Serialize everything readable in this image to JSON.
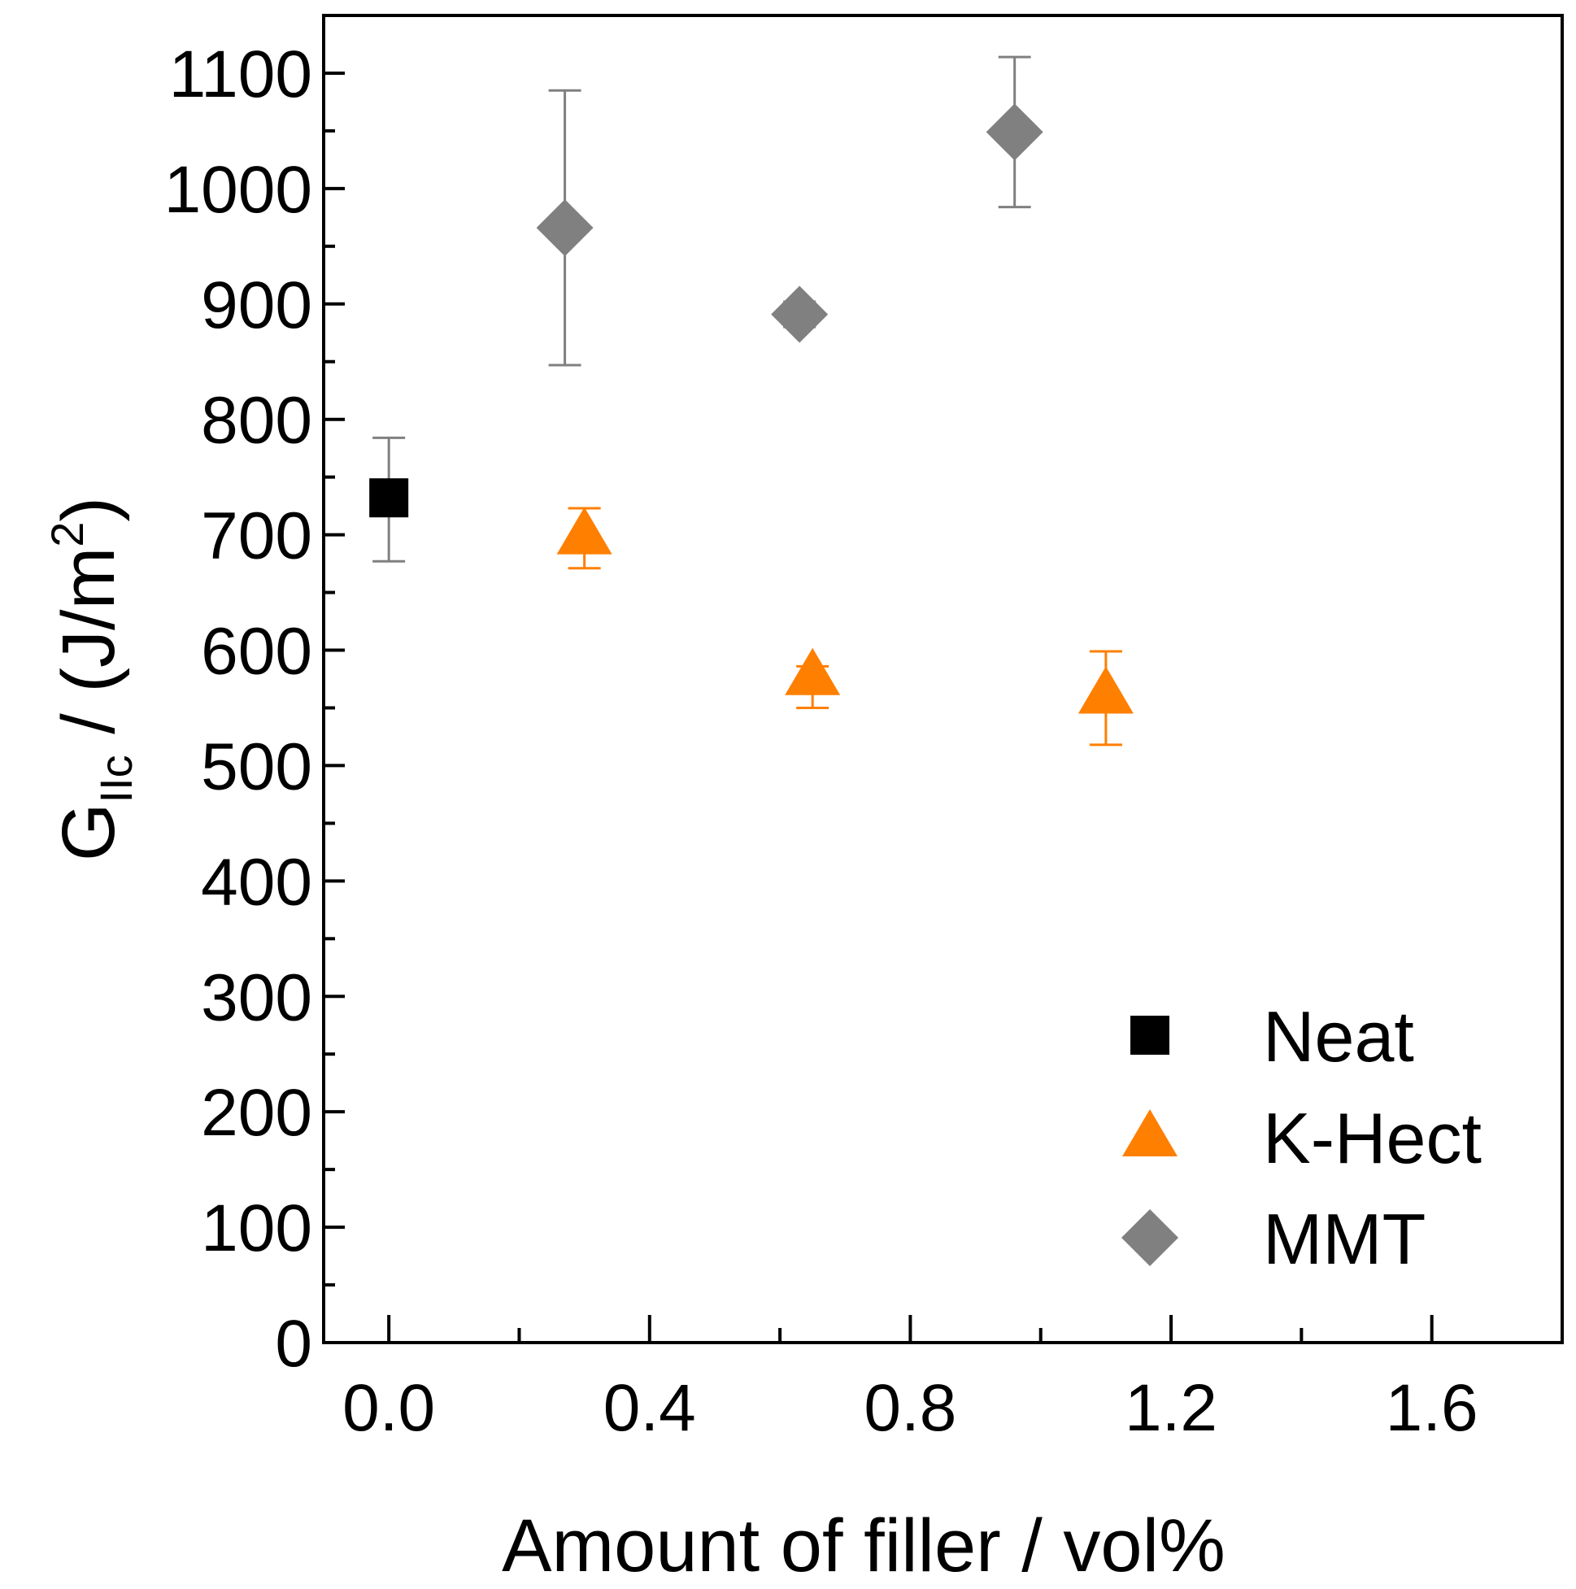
{
  "chart_data": {
    "type": "scatter",
    "xlabel": "Amount of filler / vol%",
    "ylabel": {
      "main": "G",
      "subscript": "IIc",
      "units": " / (J/m",
      "superscript": "2",
      "close": ")"
    },
    "xlim": [
      -0.1,
      1.8
    ],
    "ylim": [
      0,
      1150
    ],
    "x_ticks": [
      0.0,
      0.4,
      0.8,
      1.2,
      1.6
    ],
    "x_tick_labels": [
      "0.0",
      "0.4",
      "0.8",
      "1.2",
      "1.6"
    ],
    "y_ticks": [
      0,
      100,
      200,
      300,
      400,
      500,
      600,
      700,
      800,
      900,
      1000,
      1100
    ],
    "y_tick_labels": [
      "0",
      "100",
      "200",
      "300",
      "400",
      "500",
      "600",
      "700",
      "800",
      "900",
      "1000",
      "1100"
    ],
    "grid": false,
    "legend_position": "bottom-right",
    "series": [
      {
        "name": "Neat",
        "marker": "square",
        "color": "#000000",
        "error_color": "#808080",
        "points": [
          {
            "x": 0.0,
            "y": 732,
            "err_low": 677,
            "err_high": 784
          }
        ]
      },
      {
        "name": "K-Hect",
        "marker": "triangle",
        "color": "#ff7f00",
        "error_color": "#ff7f00",
        "points": [
          {
            "x": 0.3,
            "y": 700,
            "err_low": 671,
            "err_high": 723
          },
          {
            "x": 0.65,
            "y": 578,
            "err_low": 550,
            "err_high": 586
          },
          {
            "x": 1.1,
            "y": 562,
            "err_low": 518,
            "err_high": 599
          }
        ]
      },
      {
        "name": "MMT",
        "marker": "diamond",
        "color": "#808080",
        "error_color": "#808080",
        "points": [
          {
            "x": 0.27,
            "y": 966,
            "err_low": 847,
            "err_high": 1085
          },
          {
            "x": 0.63,
            "y": 891,
            "err_low": 880,
            "err_high": 902
          },
          {
            "x": 0.96,
            "y": 1049,
            "err_low": 984,
            "err_high": 1114
          }
        ]
      }
    ]
  }
}
